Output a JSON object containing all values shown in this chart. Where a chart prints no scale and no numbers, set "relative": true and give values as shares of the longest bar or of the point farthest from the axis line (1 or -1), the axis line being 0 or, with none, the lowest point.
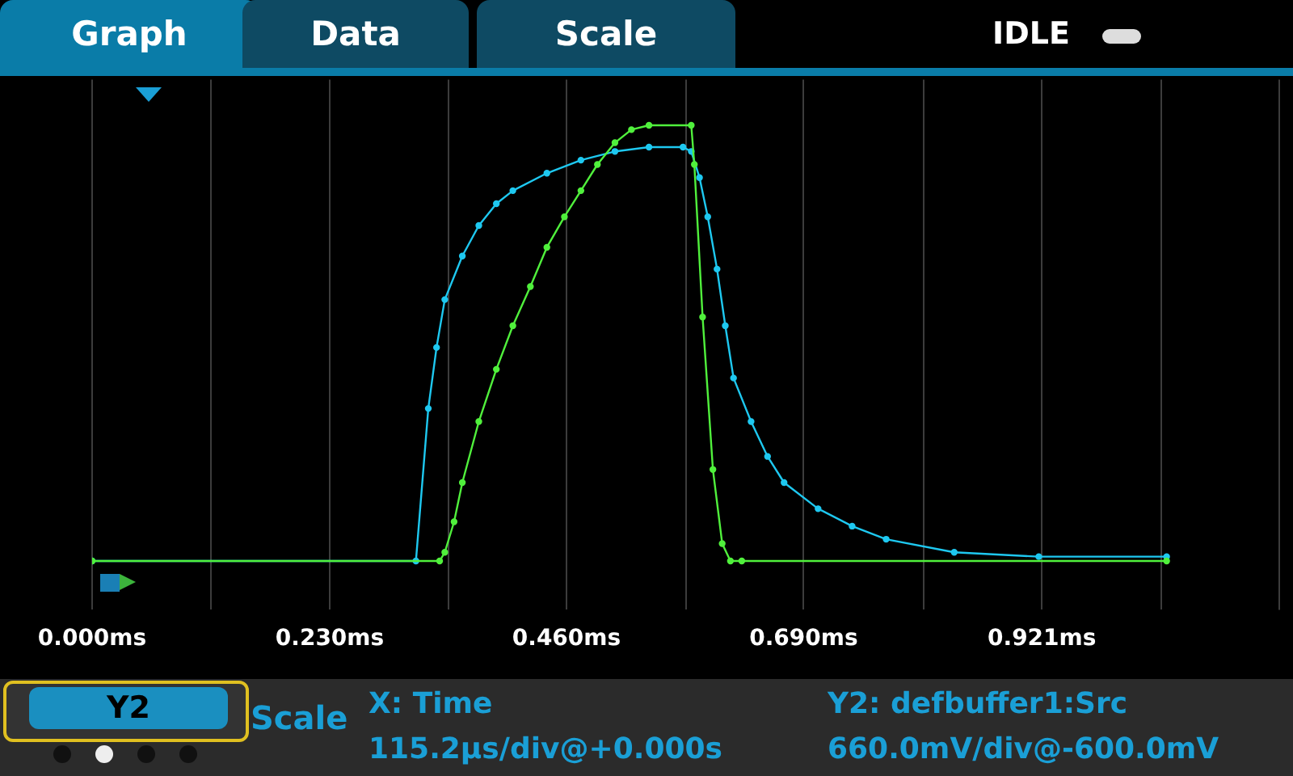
{
  "chart_data": {
    "type": "line",
    "relative": true,
    "marker": "circle",
    "grid": "x",
    "legend": false,
    "xlim": [
      0,
      1.152
    ],
    "xticks": [
      {
        "value": 0,
        "label": "0.000ms"
      },
      {
        "value": 0.1152,
        "label": null
      },
      {
        "value": 0.2304,
        "label": "0.230ms"
      },
      {
        "value": 0.3456,
        "label": null
      },
      {
        "value": 0.46,
        "label": "0.460ms"
      },
      {
        "value": 0.576,
        "label": null
      },
      {
        "value": 0.69,
        "label": "0.690ms"
      },
      {
        "value": 0.8064,
        "label": null
      },
      {
        "value": 0.921,
        "label": "0.921ms"
      },
      {
        "value": 1.0368,
        "label": null
      }
    ],
    "series": [
      {
        "color": "#50f03c",
        "x": [
          0,
          0.337,
          0.342,
          0.351,
          0.359,
          0.375,
          0.392,
          0.408,
          0.425,
          0.441,
          0.458,
          0.474,
          0.49,
          0.507,
          0.523,
          0.54,
          0.581,
          0.584,
          0.592,
          0.602,
          0.611,
          0.619,
          0.63,
          1.042
        ],
        "values": [
          0,
          0,
          0.02,
          0.09,
          0.18,
          0.32,
          0.44,
          0.54,
          0.63,
          0.72,
          0.79,
          0.85,
          0.91,
          0.96,
          0.99,
          1,
          1,
          0.91,
          0.56,
          0.21,
          0.04,
          0,
          0,
          0
        ]
      },
      {
        "color": "#1ec8f0",
        "x": [
          0,
          0.314,
          0.326,
          0.334,
          0.342,
          0.359,
          0.375,
          0.392,
          0.408,
          0.441,
          0.474,
          0.507,
          0.54,
          0.573,
          0.581,
          0.589,
          0.597,
          0.606,
          0.614,
          0.622,
          0.639,
          0.655,
          0.671,
          0.704,
          0.737,
          0.77,
          0.836,
          0.918,
          1.042
        ],
        "values": [
          0,
          0,
          0.35,
          0.49,
          0.6,
          0.7,
          0.77,
          0.82,
          0.85,
          0.89,
          0.92,
          0.94,
          0.95,
          0.95,
          0.94,
          0.88,
          0.79,
          0.67,
          0.54,
          0.42,
          0.32,
          0.24,
          0.18,
          0.12,
          0.08,
          0.05,
          0.02,
          0.01,
          0.01
        ]
      }
    ],
    "annotations": [
      "Graph",
      "Data",
      "Scale",
      "IDLE",
      "Y2",
      "Scale",
      "X: Time",
      "115.2µs/div@+0.000s",
      "Y2: defbuffer1:Src",
      "660.0mV/div@-600.0mV"
    ]
  }
}
